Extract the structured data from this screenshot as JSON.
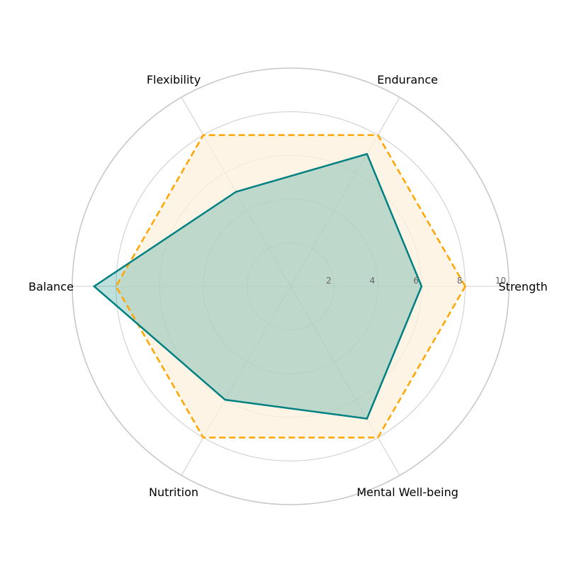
{
  "chart_data": {
    "type": "radar",
    "axes": [
      "Strength",
      "Endurance",
      "Flexibility",
      "Balance",
      "Nutrition",
      "Mental Well-being"
    ],
    "rlim": [
      0,
      10
    ],
    "r_ticks": [
      2,
      4,
      6,
      8,
      10
    ],
    "grid": true,
    "series": [
      {
        "values": [
          6,
          7,
          5,
          9,
          6,
          7
        ],
        "color": "#008080",
        "fill_color": "#2a9d8f",
        "line_style": "solid"
      },
      {
        "values": [
          8,
          8,
          8,
          8,
          8,
          8
        ],
        "color": "#FFA500",
        "fill_color": "#fdf0dc",
        "line_style": "dashed"
      }
    ]
  }
}
